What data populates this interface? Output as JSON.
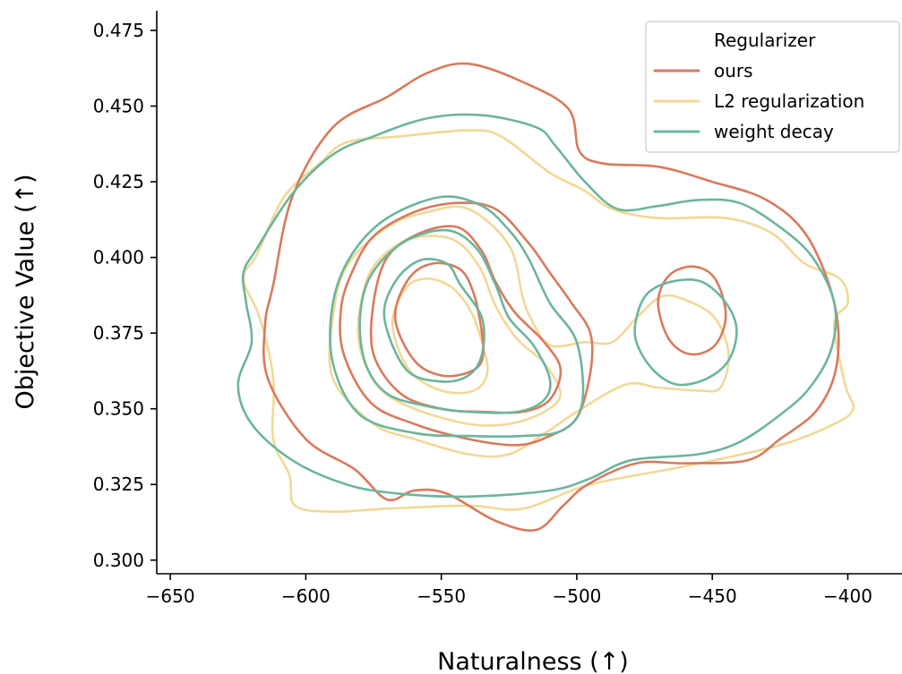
{
  "chart_data": {
    "type": "kde_contour",
    "xlabel": "Naturalness (↑)",
    "ylabel": "Objective Value (↑)",
    "xlim": [
      -655,
      -380
    ],
    "ylim": [
      0.2955,
      0.4815
    ],
    "x_ticks": [
      -650,
      -600,
      -550,
      -500,
      -450,
      -400
    ],
    "x_tick_labels": [
      "−650",
      "−600",
      "−550",
      "−500",
      "−450",
      "−400"
    ],
    "y_ticks": [
      0.3,
      0.325,
      0.35,
      0.375,
      0.4,
      0.425,
      0.45,
      0.475
    ],
    "y_tick_labels": [
      "0.300",
      "0.325",
      "0.350",
      "0.375",
      "0.400",
      "0.425",
      "0.450",
      "0.475"
    ],
    "legend": {
      "title": "Regularizer",
      "placement": "top-right"
    },
    "series": [
      {
        "name": "ours",
        "color": "#d97a5b",
        "contours": [
          [
            [
              -612,
              0.391
            ],
            [
              -605,
              0.42
            ],
            [
              -590,
              0.443
            ],
            [
              -570,
              0.453
            ],
            [
              -555,
              0.461
            ],
            [
              -540,
              0.464
            ],
            [
              -520,
              0.458
            ],
            [
              -503,
              0.449
            ],
            [
              -499,
              0.435
            ],
            [
              -490,
              0.431
            ],
            [
              -470,
              0.43
            ],
            [
              -450,
              0.425
            ],
            [
              -430,
              0.419
            ],
            [
              -415,
              0.407
            ],
            [
              -405,
              0.385
            ],
            [
              -404,
              0.365
            ],
            [
              -411,
              0.35
            ],
            [
              -425,
              0.34
            ],
            [
              -437,
              0.333
            ],
            [
              -460,
              0.332
            ],
            [
              -478,
              0.332
            ],
            [
              -496,
              0.325
            ],
            [
              -505,
              0.318
            ],
            [
              -515,
              0.31
            ],
            [
              -530,
              0.313
            ],
            [
              -548,
              0.322
            ],
            [
              -560,
              0.323
            ],
            [
              -570,
              0.32
            ],
            [
              -582,
              0.33
            ],
            [
              -600,
              0.34
            ],
            [
              -614,
              0.36
            ],
            [
              -615,
              0.378
            ],
            [
              -612,
              0.391
            ]
          ],
          [
            [
              -583,
              0.395
            ],
            [
              -575,
              0.407
            ],
            [
              -560,
              0.415
            ],
            [
              -544,
              0.418
            ],
            [
              -530,
              0.416
            ],
            [
              -518,
              0.405
            ],
            [
              -510,
              0.395
            ],
            [
              -502,
              0.385
            ],
            [
              -495,
              0.375
            ],
            [
              -495,
              0.362
            ],
            [
              -500,
              0.347
            ],
            [
              -510,
              0.341
            ],
            [
              -522,
              0.338
            ],
            [
              -540,
              0.34
            ],
            [
              -560,
              0.345
            ],
            [
              -576,
              0.352
            ],
            [
              -586,
              0.368
            ],
            [
              -587,
              0.383
            ],
            [
              -583,
              0.395
            ]
          ],
          [
            [
              -575,
              0.385
            ],
            [
              -570,
              0.4
            ],
            [
              -558,
              0.408
            ],
            [
              -544,
              0.41
            ],
            [
              -535,
              0.402
            ],
            [
              -530,
              0.392
            ],
            [
              -523,
              0.382
            ],
            [
              -512,
              0.372
            ],
            [
              -506,
              0.363
            ],
            [
              -510,
              0.353
            ],
            [
              -520,
              0.349
            ],
            [
              -535,
              0.349
            ],
            [
              -550,
              0.35
            ],
            [
              -565,
              0.355
            ],
            [
              -575,
              0.368
            ],
            [
              -575,
              0.385
            ]
          ],
          [
            [
              -567,
              0.38
            ],
            [
              -562,
              0.393
            ],
            [
              -553,
              0.398
            ],
            [
              -543,
              0.396
            ],
            [
              -538,
              0.388
            ],
            [
              -535,
              0.375
            ],
            [
              -535,
              0.366
            ],
            [
              -540,
              0.362
            ],
            [
              -550,
              0.361
            ],
            [
              -560,
              0.366
            ],
            [
              -567,
              0.38
            ]
          ],
          [
            [
              -470,
              0.385
            ],
            [
              -466,
              0.394
            ],
            [
              -457,
              0.397
            ],
            [
              -449,
              0.393
            ],
            [
              -445,
              0.381
            ],
            [
              -449,
              0.371
            ],
            [
              -458,
              0.368
            ],
            [
              -466,
              0.373
            ],
            [
              -470,
              0.385
            ]
          ]
        ]
      },
      {
        "name": "L2 regularization",
        "color": "#f2d897",
        "contours": [
          [
            [
              -623,
              0.393
            ],
            [
              -618,
              0.401
            ],
            [
              -608,
              0.42
            ],
            [
              -595,
              0.431
            ],
            [
              -585,
              0.438
            ],
            [
              -565,
              0.44
            ],
            [
              -540,
              0.442
            ],
            [
              -528,
              0.44
            ],
            [
              -510,
              0.428
            ],
            [
              -497,
              0.422
            ],
            [
              -487,
              0.416
            ],
            [
              -470,
              0.413
            ],
            [
              -445,
              0.413
            ],
            [
              -428,
              0.408
            ],
            [
              -416,
              0.398
            ],
            [
              -403,
              0.393
            ],
            [
              -400,
              0.385
            ],
            [
              -405,
              0.378
            ],
            [
              -401,
              0.358
            ],
            [
              -398,
              0.35
            ],
            [
              -405,
              0.345
            ],
            [
              -425,
              0.338
            ],
            [
              -460,
              0.331
            ],
            [
              -495,
              0.325
            ],
            [
              -520,
              0.317
            ],
            [
              -540,
              0.318
            ],
            [
              -570,
              0.317
            ],
            [
              -590,
              0.316
            ],
            [
              -604,
              0.318
            ],
            [
              -606,
              0.328
            ],
            [
              -612,
              0.34
            ],
            [
              -612,
              0.36
            ],
            [
              -617,
              0.38
            ],
            [
              -623,
              0.393
            ]
          ],
          [
            [
              -590,
              0.38
            ],
            [
              -585,
              0.397
            ],
            [
              -570,
              0.41
            ],
            [
              -555,
              0.415
            ],
            [
              -540,
              0.416
            ],
            [
              -525,
              0.404
            ],
            [
              -520,
              0.387
            ],
            [
              -517,
              0.38
            ],
            [
              -510,
              0.371
            ],
            [
              -497,
              0.372
            ],
            [
              -487,
              0.372
            ],
            [
              -478,
              0.38
            ],
            [
              -469,
              0.387
            ],
            [
              -460,
              0.386
            ],
            [
              -449,
              0.38
            ],
            [
              -444,
              0.368
            ],
            [
              -447,
              0.357
            ],
            [
              -455,
              0.356
            ],
            [
              -470,
              0.357
            ],
            [
              -482,
              0.358
            ],
            [
              -500,
              0.349
            ],
            [
              -510,
              0.343
            ],
            [
              -525,
              0.335
            ],
            [
              -540,
              0.335
            ],
            [
              -560,
              0.34
            ],
            [
              -575,
              0.345
            ],
            [
              -590,
              0.36
            ],
            [
              -590,
              0.38
            ]
          ],
          [
            [
              -580,
              0.383
            ],
            [
              -575,
              0.397
            ],
            [
              -562,
              0.406
            ],
            [
              -546,
              0.406
            ],
            [
              -536,
              0.397
            ],
            [
              -530,
              0.384
            ],
            [
              -522,
              0.373
            ],
            [
              -512,
              0.365
            ],
            [
              -506,
              0.355
            ],
            [
              -512,
              0.349
            ],
            [
              -525,
              0.345
            ],
            [
              -540,
              0.345
            ],
            [
              -560,
              0.35
            ],
            [
              -573,
              0.357
            ],
            [
              -580,
              0.37
            ],
            [
              -580,
              0.383
            ]
          ],
          [
            [
              -568,
              0.378
            ],
            [
              -563,
              0.39
            ],
            [
              -555,
              0.393
            ],
            [
              -546,
              0.39
            ],
            [
              -539,
              0.382
            ],
            [
              -535,
              0.372
            ],
            [
              -533,
              0.362
            ],
            [
              -538,
              0.356
            ],
            [
              -550,
              0.356
            ],
            [
              -562,
              0.363
            ],
            [
              -568,
              0.378
            ]
          ]
        ]
      },
      {
        "name": "weight decay",
        "color": "#6cb59c",
        "contours": [
          [
            [
              -623,
              0.395
            ],
            [
              -618,
              0.403
            ],
            [
              -605,
              0.421
            ],
            [
              -590,
              0.434
            ],
            [
              -575,
              0.44
            ],
            [
              -555,
              0.446
            ],
            [
              -535,
              0.447
            ],
            [
              -515,
              0.443
            ],
            [
              -508,
              0.437
            ],
            [
              -497,
              0.425
            ],
            [
              -485,
              0.416
            ],
            [
              -470,
              0.417
            ],
            [
              -455,
              0.419
            ],
            [
              -440,
              0.418
            ],
            [
              -425,
              0.41
            ],
            [
              -413,
              0.4
            ],
            [
              -405,
              0.385
            ],
            [
              -406,
              0.37
            ],
            [
              -414,
              0.357
            ],
            [
              -425,
              0.348
            ],
            [
              -440,
              0.339
            ],
            [
              -455,
              0.335
            ],
            [
              -480,
              0.333
            ],
            [
              -495,
              0.327
            ],
            [
              -510,
              0.323
            ],
            [
              -540,
              0.321
            ],
            [
              -566,
              0.322
            ],
            [
              -585,
              0.325
            ],
            [
              -605,
              0.333
            ],
            [
              -620,
              0.345
            ],
            [
              -625,
              0.358
            ],
            [
              -620,
              0.372
            ],
            [
              -622,
              0.385
            ],
            [
              -623,
              0.395
            ]
          ],
          [
            [
              -590,
              0.385
            ],
            [
              -583,
              0.401
            ],
            [
              -570,
              0.413
            ],
            [
              -550,
              0.42
            ],
            [
              -535,
              0.417
            ],
            [
              -525,
              0.409
            ],
            [
              -518,
              0.4
            ],
            [
              -510,
              0.385
            ],
            [
              -500,
              0.372
            ],
            [
              -498,
              0.352
            ],
            [
              -505,
              0.343
            ],
            [
              -520,
              0.341
            ],
            [
              -540,
              0.341
            ],
            [
              -560,
              0.342
            ],
            [
              -580,
              0.348
            ],
            [
              -590,
              0.365
            ],
            [
              -590,
              0.385
            ]
          ],
          [
            [
              -580,
              0.38
            ],
            [
              -576,
              0.394
            ],
            [
              -564,
              0.405
            ],
            [
              -548,
              0.409
            ],
            [
              -537,
              0.403
            ],
            [
              -530,
              0.391
            ],
            [
              -525,
              0.38
            ],
            [
              -516,
              0.371
            ],
            [
              -510,
              0.36
            ],
            [
              -512,
              0.353
            ],
            [
              -522,
              0.349
            ],
            [
              -540,
              0.349
            ],
            [
              -556,
              0.351
            ],
            [
              -570,
              0.355
            ],
            [
              -578,
              0.365
            ],
            [
              -580,
              0.38
            ]
          ],
          [
            [
              -571,
              0.38
            ],
            [
              -567,
              0.392
            ],
            [
              -558,
              0.399
            ],
            [
              -548,
              0.398
            ],
            [
              -543,
              0.391
            ],
            [
              -535,
              0.38
            ],
            [
              -535,
              0.368
            ],
            [
              -540,
              0.361
            ],
            [
              -550,
              0.359
            ],
            [
              -563,
              0.363
            ],
            [
              -571,
              0.38
            ]
          ],
          [
            [
              -478,
              0.38
            ],
            [
              -474,
              0.388
            ],
            [
              -465,
              0.392
            ],
            [
              -454,
              0.392
            ],
            [
              -445,
              0.385
            ],
            [
              -441,
              0.376
            ],
            [
              -444,
              0.366
            ],
            [
              -452,
              0.36
            ],
            [
              -463,
              0.358
            ],
            [
              -472,
              0.363
            ],
            [
              -478,
              0.372
            ],
            [
              -478,
              0.38
            ]
          ]
        ]
      }
    ]
  }
}
